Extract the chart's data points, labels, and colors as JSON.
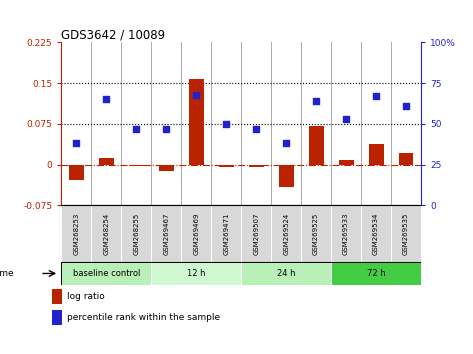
{
  "title": "GDS3642 / 10089",
  "samples": [
    "GSM268253",
    "GSM268254",
    "GSM268255",
    "GSM269467",
    "GSM269469",
    "GSM269471",
    "GSM269507",
    "GSM269524",
    "GSM269525",
    "GSM269533",
    "GSM269534",
    "GSM269535"
  ],
  "log_ratio": [
    -0.028,
    0.012,
    -0.003,
    -0.012,
    0.158,
    -0.004,
    -0.005,
    -0.042,
    0.072,
    0.008,
    0.038,
    0.022
  ],
  "percentile_rank": [
    38,
    65,
    47,
    47,
    68,
    50,
    47,
    38,
    64,
    53,
    67,
    61
  ],
  "bar_color": "#bb2200",
  "dot_color": "#2222cc",
  "ylim_left": [
    -0.075,
    0.225
  ],
  "ylim_right": [
    0,
    100
  ],
  "yticks_left": [
    -0.075,
    0,
    0.075,
    0.15,
    0.225
  ],
  "yticks_right": [
    0,
    25,
    50,
    75,
    100
  ],
  "hlines": [
    0.075,
    0.15
  ],
  "groups": [
    {
      "label": "baseline control",
      "start": 0,
      "end": 3,
      "color": "#b8f0b8"
    },
    {
      "label": "12 h",
      "start": 3,
      "end": 6,
      "color": "#d0f8d0"
    },
    {
      "label": "24 h",
      "start": 6,
      "end": 9,
      "color": "#b8f0b8"
    },
    {
      "label": "72 h",
      "start": 9,
      "end": 12,
      "color": "#44cc44"
    }
  ],
  "time_label": "time",
  "legend_log_ratio": "log ratio",
  "legend_percentile": "percentile rank within the sample",
  "background_color": "#ffffff",
  "plot_bg_color": "#ffffff",
  "tick_bg_color": "#d8d8d8"
}
